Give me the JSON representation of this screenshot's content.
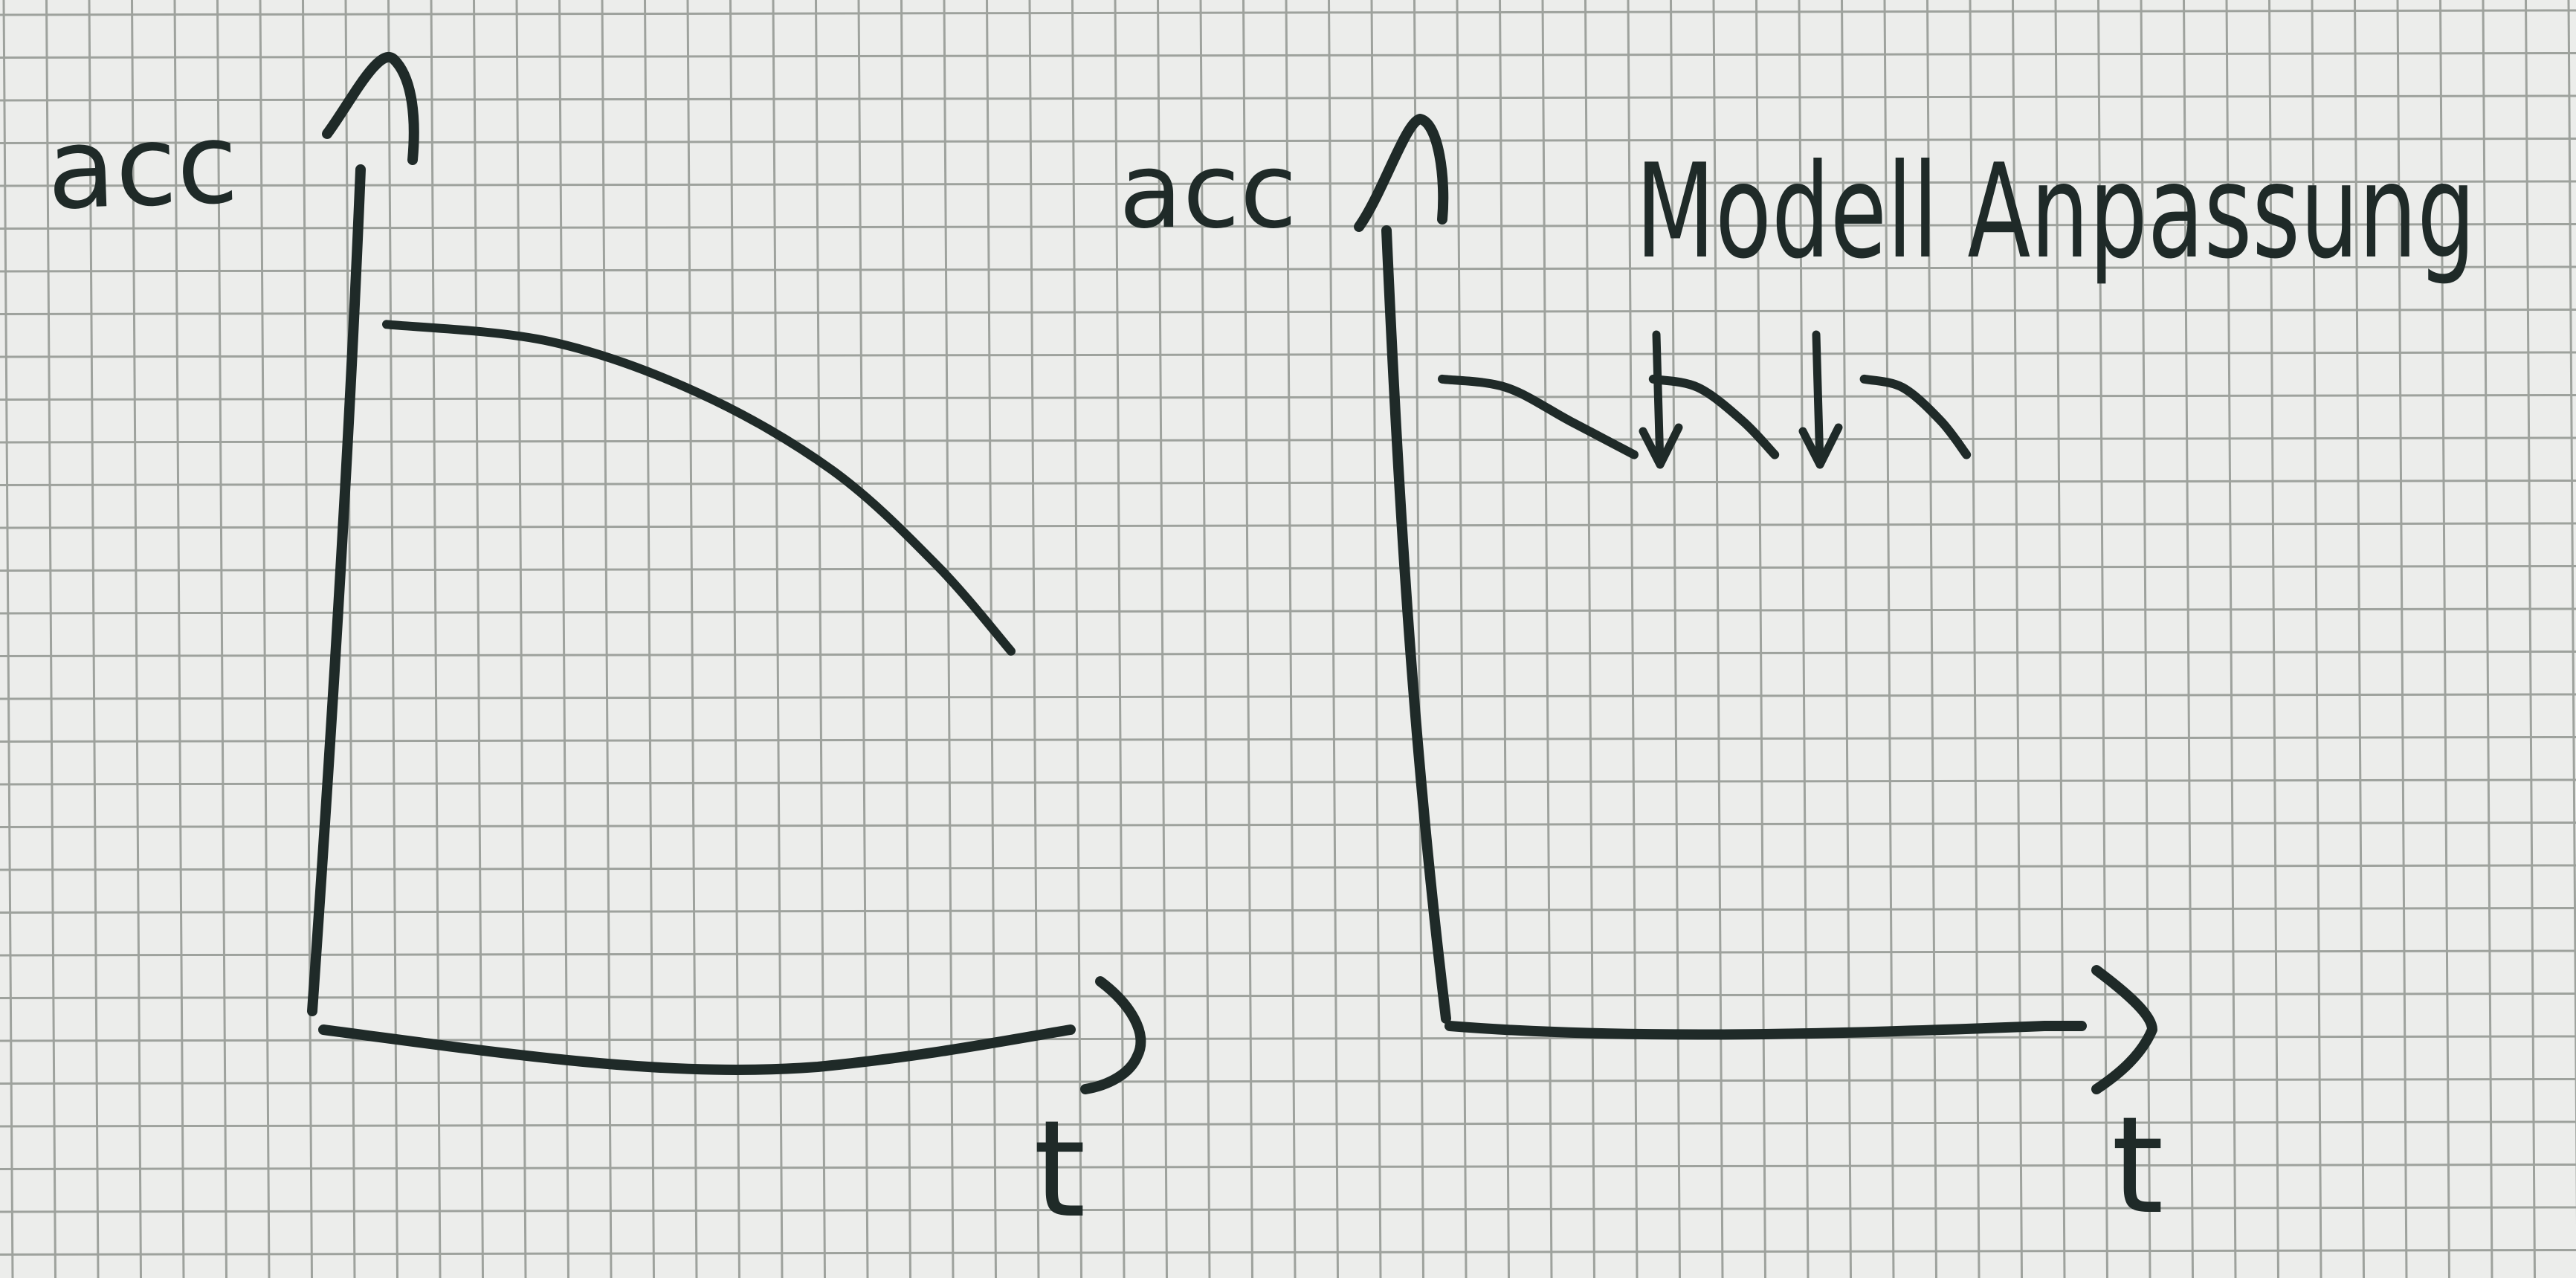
{
  "colors": {
    "paper": "#ecedeb",
    "grid": "#9ea29d",
    "ink": "#1f2a28"
  },
  "chart_data": [
    {
      "type": "line",
      "ylabel": "acc",
      "xlabel": "t",
      "grid": true,
      "series": [
        {
          "points": [
            {
              "x": 0.08,
              "y": 0.82
            },
            {
              "x": 0.3,
              "y": 0.8
            },
            {
              "x": 0.5,
              "y": 0.74
            },
            {
              "x": 0.68,
              "y": 0.65
            },
            {
              "x": 0.82,
              "y": 0.54
            },
            {
              "x": 0.92,
              "y": 0.44
            }
          ]
        }
      ]
    },
    {
      "type": "line",
      "ylabel": "acc",
      "xlabel": "t",
      "grid": true,
      "annotations": [
        {
          "text": "Modell Anpassung",
          "arrows_at_x": [
            0.3,
            0.55
          ]
        }
      ],
      "series": [
        {
          "segments": [
            [
              {
                "x": 0.0,
                "y": 0.77
              },
              {
                "x": 0.1,
                "y": 0.76
              },
              {
                "x": 0.2,
                "y": 0.72
              },
              {
                "x": 0.3,
                "y": 0.68
              }
            ],
            [
              {
                "x": 0.33,
                "y": 0.77
              },
              {
                "x": 0.4,
                "y": 0.76
              },
              {
                "x": 0.47,
                "y": 0.72
              },
              {
                "x": 0.52,
                "y": 0.68
              }
            ],
            [
              {
                "x": 0.66,
                "y": 0.77
              },
              {
                "x": 0.72,
                "y": 0.76
              },
              {
                "x": 0.78,
                "y": 0.72
              },
              {
                "x": 0.82,
                "y": 0.68
              }
            ]
          ]
        }
      ]
    }
  ]
}
